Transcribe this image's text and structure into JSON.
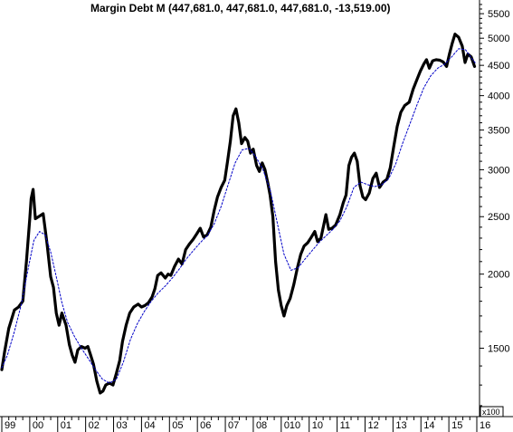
{
  "chart_data": {
    "type": "line",
    "title": "Margin Debt M (447,681.0, 447,681.0, 447,681.0, -13,519.00)",
    "y_unit_label": "x100",
    "y_scale": "log",
    "ylim": [
      1150,
      5800
    ],
    "y_ticks": [
      1500,
      2000,
      2500,
      3000,
      3500,
      4000,
      4500,
      5000,
      5500
    ],
    "x_tick_labels": [
      "99",
      "00",
      "01",
      "02",
      "03",
      "04",
      "05",
      "06",
      "07",
      "08",
      "010",
      "10",
      "11",
      "12",
      "13",
      "14",
      "15",
      "16"
    ],
    "grid": false,
    "series": [
      {
        "role": "price",
        "color": "#000000",
        "points": [
          [
            1999.0,
            1380
          ],
          [
            1999.1,
            1480
          ],
          [
            1999.25,
            1620
          ],
          [
            1999.45,
            1740
          ],
          [
            1999.6,
            1760
          ],
          [
            1999.75,
            1800
          ],
          [
            1999.88,
            2100
          ],
          [
            2000.0,
            2480
          ],
          [
            2000.05,
            2680
          ],
          [
            2000.12,
            2780
          ],
          [
            2000.2,
            2480
          ],
          [
            2000.32,
            2500
          ],
          [
            2000.48,
            2530
          ],
          [
            2000.62,
            2250
          ],
          [
            2000.75,
            1980
          ],
          [
            2000.85,
            1900
          ],
          [
            2000.95,
            1720
          ],
          [
            2001.05,
            1640
          ],
          [
            2001.15,
            1720
          ],
          [
            2001.3,
            1640
          ],
          [
            2001.42,
            1520
          ],
          [
            2001.52,
            1460
          ],
          [
            2001.62,
            1420
          ],
          [
            2001.72,
            1490
          ],
          [
            2001.85,
            1510
          ],
          [
            2001.98,
            1500
          ],
          [
            2002.08,
            1510
          ],
          [
            2002.18,
            1460
          ],
          [
            2002.28,
            1410
          ],
          [
            2002.4,
            1320
          ],
          [
            2002.52,
            1260
          ],
          [
            2002.62,
            1270
          ],
          [
            2002.72,
            1300
          ],
          [
            2002.85,
            1310
          ],
          [
            2002.98,
            1300
          ],
          [
            2003.1,
            1360
          ],
          [
            2003.22,
            1430
          ],
          [
            2003.32,
            1540
          ],
          [
            2003.45,
            1640
          ],
          [
            2003.58,
            1720
          ],
          [
            2003.72,
            1760
          ],
          [
            2003.88,
            1780
          ],
          [
            2004.0,
            1760
          ],
          [
            2004.12,
            1770
          ],
          [
            2004.25,
            1790
          ],
          [
            2004.38,
            1830
          ],
          [
            2004.48,
            1890
          ],
          [
            2004.58,
            1990
          ],
          [
            2004.7,
            2010
          ],
          [
            2004.85,
            1970
          ],
          [
            2004.95,
            2000
          ],
          [
            2005.05,
            1990
          ],
          [
            2005.18,
            2060
          ],
          [
            2005.32,
            2120
          ],
          [
            2005.45,
            2080
          ],
          [
            2005.58,
            2200
          ],
          [
            2005.72,
            2250
          ],
          [
            2005.85,
            2290
          ],
          [
            2005.98,
            2340
          ],
          [
            2006.1,
            2390
          ],
          [
            2006.22,
            2310
          ],
          [
            2006.35,
            2330
          ],
          [
            2006.48,
            2400
          ],
          [
            2006.6,
            2560
          ],
          [
            2006.72,
            2700
          ],
          [
            2006.85,
            2800
          ],
          [
            2006.98,
            2880
          ],
          [
            2007.08,
            3100
          ],
          [
            2007.18,
            3350
          ],
          [
            2007.28,
            3700
          ],
          [
            2007.38,
            3800
          ],
          [
            2007.48,
            3600
          ],
          [
            2007.58,
            3320
          ],
          [
            2007.7,
            3400
          ],
          [
            2007.8,
            3350
          ],
          [
            2007.9,
            3200
          ],
          [
            2008.0,
            3250
          ],
          [
            2008.12,
            3050
          ],
          [
            2008.22,
            2980
          ],
          [
            2008.32,
            3080
          ],
          [
            2008.42,
            3000
          ],
          [
            2008.52,
            2850
          ],
          [
            2008.6,
            2720
          ],
          [
            2008.7,
            2500
          ],
          [
            2008.8,
            2100
          ],
          [
            2008.9,
            1880
          ],
          [
            2009.0,
            1770
          ],
          [
            2009.1,
            1700
          ],
          [
            2009.2,
            1770
          ],
          [
            2009.32,
            1820
          ],
          [
            2009.45,
            1920
          ],
          [
            2009.58,
            2050
          ],
          [
            2009.7,
            2160
          ],
          [
            2009.82,
            2230
          ],
          [
            2009.95,
            2260
          ],
          [
            2010.08,
            2310
          ],
          [
            2010.2,
            2360
          ],
          [
            2010.3,
            2270
          ],
          [
            2010.42,
            2300
          ],
          [
            2010.52,
            2420
          ],
          [
            2010.6,
            2520
          ],
          [
            2010.7,
            2380
          ],
          [
            2010.82,
            2390
          ],
          [
            2010.95,
            2420
          ],
          [
            2011.1,
            2520
          ],
          [
            2011.22,
            2640
          ],
          [
            2011.32,
            2720
          ],
          [
            2011.42,
            3050
          ],
          [
            2011.52,
            3150
          ],
          [
            2011.62,
            3200
          ],
          [
            2011.72,
            3100
          ],
          [
            2011.82,
            2820
          ],
          [
            2011.92,
            2700
          ],
          [
            2012.02,
            2670
          ],
          [
            2012.15,
            2740
          ],
          [
            2012.28,
            2900
          ],
          [
            2012.4,
            2960
          ],
          [
            2012.52,
            2800
          ],
          [
            2012.65,
            2860
          ],
          [
            2012.78,
            2890
          ],
          [
            2012.9,
            3020
          ],
          [
            2013.02,
            3270
          ],
          [
            2013.15,
            3550
          ],
          [
            2013.28,
            3750
          ],
          [
            2013.42,
            3850
          ],
          [
            2013.58,
            3900
          ],
          [
            2013.72,
            4100
          ],
          [
            2013.85,
            4250
          ],
          [
            2013.98,
            4400
          ],
          [
            2014.1,
            4520
          ],
          [
            2014.2,
            4600
          ],
          [
            2014.3,
            4450
          ],
          [
            2014.42,
            4580
          ],
          [
            2014.55,
            4600
          ],
          [
            2014.68,
            4590
          ],
          [
            2014.8,
            4560
          ],
          [
            2014.92,
            4480
          ],
          [
            2015.02,
            4700
          ],
          [
            2015.12,
            4900
          ],
          [
            2015.22,
            5080
          ],
          [
            2015.35,
            5020
          ],
          [
            2015.48,
            4850
          ],
          [
            2015.58,
            4550
          ],
          [
            2015.68,
            4700
          ],
          [
            2015.8,
            4650
          ],
          [
            2015.92,
            4480
          ]
        ]
      },
      {
        "role": "moving-average",
        "color": "#0000c8",
        "points": [
          [
            1999.0,
            1390
          ],
          [
            1999.2,
            1460
          ],
          [
            1999.45,
            1600
          ],
          [
            1999.7,
            1780
          ],
          [
            1999.95,
            2050
          ],
          [
            2000.15,
            2280
          ],
          [
            2000.35,
            2360
          ],
          [
            2000.55,
            2330
          ],
          [
            2000.75,
            2180
          ],
          [
            2000.95,
            1980
          ],
          [
            2001.15,
            1790
          ],
          [
            2001.35,
            1660
          ],
          [
            2001.6,
            1570
          ],
          [
            2001.85,
            1500
          ],
          [
            2002.1,
            1440
          ],
          [
            2002.35,
            1380
          ],
          [
            2002.6,
            1330
          ],
          [
            2002.85,
            1310
          ],
          [
            2003.1,
            1330
          ],
          [
            2003.35,
            1420
          ],
          [
            2003.6,
            1550
          ],
          [
            2003.85,
            1650
          ],
          [
            2004.1,
            1730
          ],
          [
            2004.35,
            1800
          ],
          [
            2004.6,
            1860
          ],
          [
            2004.85,
            1910
          ],
          [
            2005.1,
            1970
          ],
          [
            2005.35,
            2040
          ],
          [
            2005.6,
            2120
          ],
          [
            2005.85,
            2190
          ],
          [
            2006.1,
            2260
          ],
          [
            2006.35,
            2320
          ],
          [
            2006.6,
            2430
          ],
          [
            2006.85,
            2600
          ],
          [
            2007.1,
            2830
          ],
          [
            2007.35,
            3080
          ],
          [
            2007.6,
            3240
          ],
          [
            2007.85,
            3260
          ],
          [
            2008.1,
            3150
          ],
          [
            2008.35,
            3000
          ],
          [
            2008.6,
            2780
          ],
          [
            2008.85,
            2450
          ],
          [
            2009.1,
            2160
          ],
          [
            2009.35,
            2030
          ],
          [
            2009.6,
            2050
          ],
          [
            2009.85,
            2120
          ],
          [
            2010.1,
            2190
          ],
          [
            2010.35,
            2260
          ],
          [
            2010.6,
            2320
          ],
          [
            2010.85,
            2380
          ],
          [
            2011.1,
            2460
          ],
          [
            2011.35,
            2600
          ],
          [
            2011.6,
            2800
          ],
          [
            2011.85,
            2860
          ],
          [
            2012.1,
            2830
          ],
          [
            2012.35,
            2810
          ],
          [
            2012.6,
            2830
          ],
          [
            2012.85,
            2900
          ],
          [
            2013.1,
            3070
          ],
          [
            2013.35,
            3330
          ],
          [
            2013.6,
            3580
          ],
          [
            2013.85,
            3850
          ],
          [
            2014.1,
            4120
          ],
          [
            2014.35,
            4320
          ],
          [
            2014.6,
            4450
          ],
          [
            2014.85,
            4520
          ],
          [
            2015.1,
            4650
          ],
          [
            2015.35,
            4800
          ],
          [
            2015.6,
            4780
          ],
          [
            2015.85,
            4600
          ],
          [
            2015.95,
            4540
          ]
        ]
      }
    ]
  }
}
